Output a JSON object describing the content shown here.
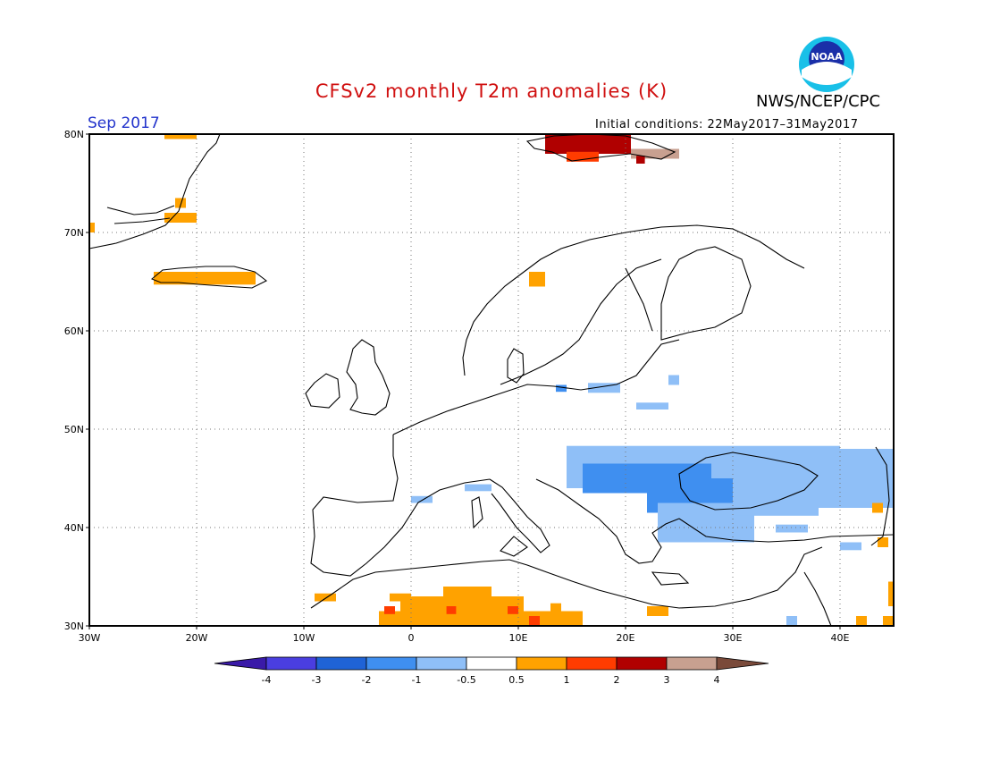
{
  "header": {
    "title": "CFSv2 monthly T2m anomalies (K)",
    "month": "Sep 2017",
    "agency": "NWS/NCEP/CPC",
    "initial_conditions": "Initial conditions: 22May2017–31May2017",
    "logo": {
      "text": "NOAA",
      "icon": "noaa-logo-icon"
    }
  },
  "map": {
    "region": "Europe",
    "lon_range": [
      -30,
      45
    ],
    "lat_range": [
      30,
      80
    ],
    "lat_labels": [
      "80N",
      "70N",
      "60N",
      "50N",
      "40N",
      "30N"
    ],
    "lon_labels": [
      "30W",
      "20W",
      "10W",
      "0",
      "10E",
      "20E",
      "30E",
      "40E"
    ],
    "grid": "dotted every 10 degrees"
  },
  "colorbar": {
    "labels": [
      "-4",
      "-3",
      "-2",
      "-1",
      "-0.5",
      "0.5",
      "1",
      "2",
      "3",
      "4"
    ],
    "colors": [
      "#3a1aa8",
      "#4a3ee0",
      "#1f63d6",
      "#3f8ff0",
      "#8fbff7",
      "#ffffff",
      "#ffa200",
      "#ff3c00",
      "#b00000",
      "#c8a090",
      "#7a4a3a"
    ]
  },
  "anomaly_patches": [
    {
      "lon": [
        -23,
        -20
      ],
      "lat": [
        79.5,
        80
      ],
      "value": 0.7
    },
    {
      "lon": [
        -23,
        -20
      ],
      "lat": [
        71,
        72
      ],
      "value": 0.7
    },
    {
      "lon": [
        -22,
        -21
      ],
      "lat": [
        72.5,
        73.5
      ],
      "value": 0.7
    },
    {
      "lon": [
        -30,
        -29.5
      ],
      "lat": [
        70,
        71
      ],
      "value": 0.7
    },
    {
      "lon": [
        -24,
        -14.5
      ],
      "lat": [
        64.7,
        66
      ],
      "value": 0.7
    },
    {
      "lon": [
        11,
        12.5
      ],
      "lat": [
        64.5,
        66
      ],
      "value": 0.7
    },
    {
      "lon": [
        12.5,
        20.5
      ],
      "lat": [
        78,
        80
      ],
      "value": 2.5
    },
    {
      "lon": [
        14.5,
        17.5
      ],
      "lat": [
        77.2,
        78.2
      ],
      "value": 1.5
    },
    {
      "lon": [
        20.5,
        25
      ],
      "lat": [
        77.5,
        78.5
      ],
      "value": 3.5
    },
    {
      "lon": [
        21,
        21.8
      ],
      "lat": [
        77,
        77.8
      ],
      "value": 2.5
    },
    {
      "lon": [
        16.5,
        19.5
      ],
      "lat": [
        53.7,
        54.7
      ],
      "value": -0.7
    },
    {
      "lon": [
        24,
        25
      ],
      "lat": [
        54.5,
        55.5
      ],
      "value": -0.7
    },
    {
      "lon": [
        21,
        24
      ],
      "lat": [
        52,
        52.7
      ],
      "value": -0.7
    },
    {
      "lon": [
        13.5,
        14.5
      ],
      "lat": [
        53.8,
        54.5
      ],
      "value": -1.5
    },
    {
      "lon": [
        14.5,
        40
      ],
      "lat": [
        44,
        48.3
      ],
      "value": -0.7
    },
    {
      "lon": [
        29,
        45
      ],
      "lat": [
        42,
        48
      ],
      "value": -0.7
    },
    {
      "lon": [
        16,
        28
      ],
      "lat": [
        43.5,
        46.5
      ],
      "value": -1.5
    },
    {
      "lon": [
        22,
        30
      ],
      "lat": [
        41.5,
        45
      ],
      "value": -1.5
    },
    {
      "lon": [
        23,
        32
      ],
      "lat": [
        38.5,
        42.5
      ],
      "value": -0.7
    },
    {
      "lon": [
        30,
        38
      ],
      "lat": [
        41.2,
        42
      ],
      "value": -0.7
    },
    {
      "lon": [
        0,
        2
      ],
      "lat": [
        42.5,
        43.2
      ],
      "value": -0.7
    },
    {
      "lon": [
        5,
        7.5
      ],
      "lat": [
        43.7,
        44.4
      ],
      "value": -0.7
    },
    {
      "lon": [
        34,
        37
      ],
      "lat": [
        39.5,
        40.3
      ],
      "value": -0.7
    },
    {
      "lon": [
        40,
        42
      ],
      "lat": [
        37.7,
        38.5
      ],
      "value": -0.7
    },
    {
      "lon": [
        35,
        36
      ],
      "lat": [
        30,
        31
      ],
      "value": -0.7
    },
    {
      "lon": [
        -9,
        -7
      ],
      "lat": [
        32.5,
        33.3
      ],
      "value": 0.7
    },
    {
      "lon": [
        -2,
        0
      ],
      "lat": [
        32.5,
        33.3
      ],
      "value": 0.7
    },
    {
      "lon": [
        -3,
        16
      ],
      "lat": [
        30,
        31.5
      ],
      "value": 0.7
    },
    {
      "lon": [
        -1,
        10.5
      ],
      "lat": [
        31.5,
        33
      ],
      "value": 0.7
    },
    {
      "lon": [
        3,
        7.5
      ],
      "lat": [
        33,
        34
      ],
      "value": 0.7
    },
    {
      "lon": [
        13,
        14
      ],
      "lat": [
        30.8,
        32.3
      ],
      "value": 0.7
    },
    {
      "lon": [
        22,
        24
      ],
      "lat": [
        31,
        32
      ],
      "value": 0.7
    },
    {
      "lon": [
        -2.5,
        -1.5
      ],
      "lat": [
        31.2,
        32
      ],
      "value": 1.5
    },
    {
      "lon": [
        3.3,
        4.2
      ],
      "lat": [
        31.2,
        32
      ],
      "value": 1.5
    },
    {
      "lon": [
        9,
        10
      ],
      "lat": [
        31.2,
        32
      ],
      "value": 1.5
    },
    {
      "lon": [
        11,
        12
      ],
      "lat": [
        30,
        31
      ],
      "value": 1.5
    },
    {
      "lon": [
        41.5,
        42.5
      ],
      "lat": [
        30,
        31
      ],
      "value": 0.7
    },
    {
      "lon": [
        44,
        45
      ],
      "lat": [
        30,
        31
      ],
      "value": 0.7
    },
    {
      "lon": [
        44.5,
        45
      ],
      "lat": [
        32,
        34.5
      ],
      "value": 0.7
    },
    {
      "lon": [
        43,
        44
      ],
      "lat": [
        41.5,
        42.5
      ],
      "value": 0.7
    },
    {
      "lon": [
        43.5,
        44.5
      ],
      "lat": [
        38,
        39
      ],
      "value": 0.7
    }
  ]
}
